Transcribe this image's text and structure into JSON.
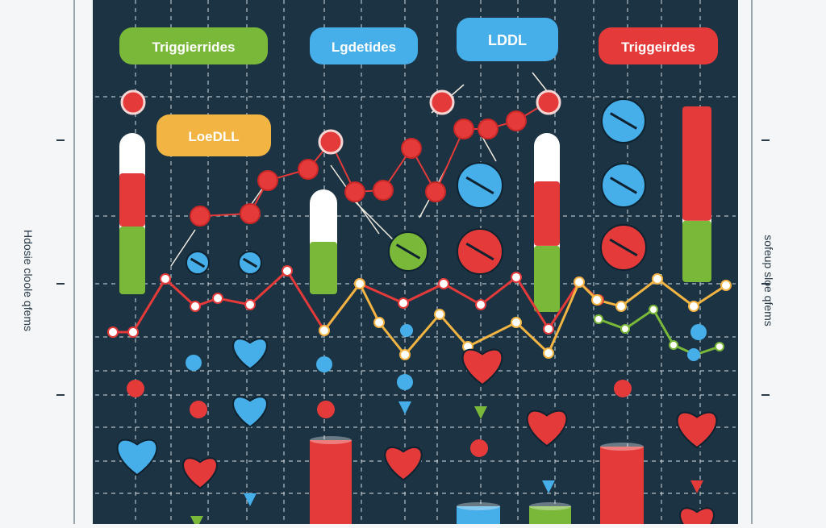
{
  "labels": {
    "tag_green": "Triggierrides",
    "tag_blue": "Lgdetides",
    "tag_blue_top": "LDDL",
    "tag_red": "Triggeirdes",
    "tag_yellow": "LoeDLL"
  },
  "side_text": {
    "left": "Hdosie cloole qfems",
    "right": "sofeup sloe qfems"
  },
  "colors": {
    "panel": "#1b3342",
    "red": "#e53a3a",
    "green": "#7ab83a",
    "blue": "#46aee8",
    "yellow": "#f2b443",
    "white": "#ffffff"
  }
}
